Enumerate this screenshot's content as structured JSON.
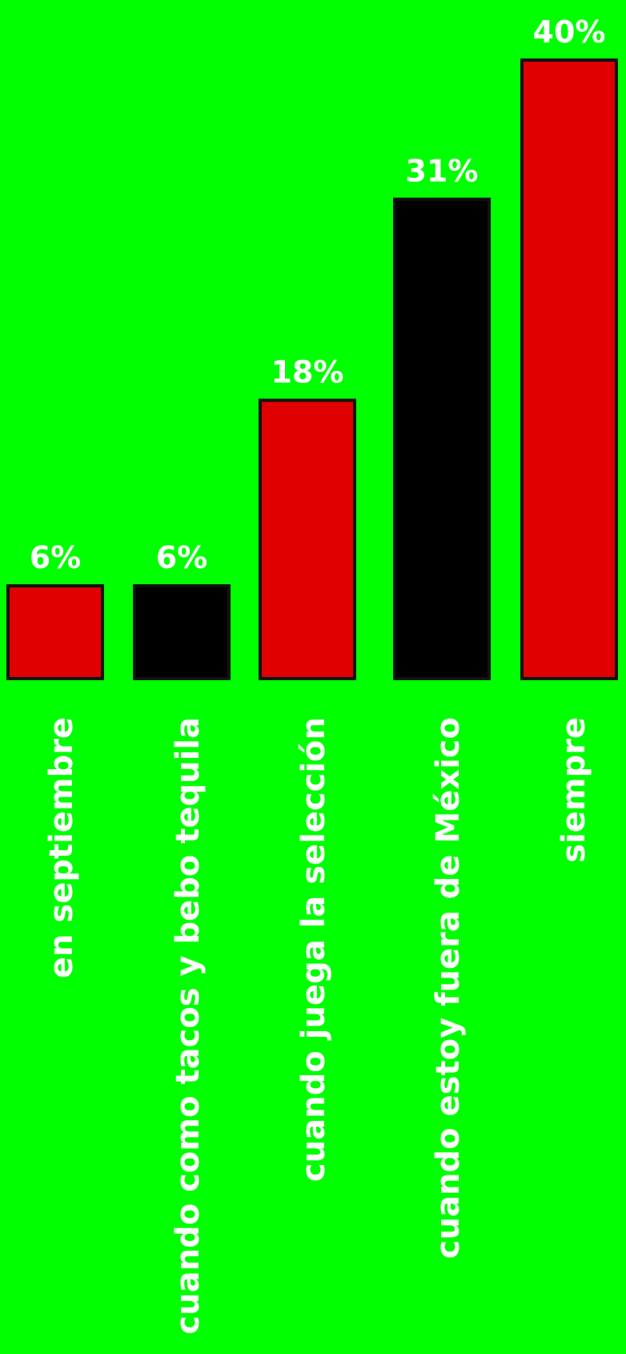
{
  "chart_data": {
    "type": "bar",
    "categories": [
      "en septiembre",
      "cuando como tacos y bebo tequila",
      "cuando juega la selección",
      "cuando estoy fuera de México",
      "siempre"
    ],
    "values": [
      6,
      6,
      18,
      31,
      40
    ],
    "value_labels": [
      "6%",
      "6%",
      "18%",
      "31%",
      "40%"
    ],
    "ylim": [
      0,
      40
    ],
    "grid": false,
    "legend": "none",
    "colors": {
      "background": "#00FF00",
      "bars": [
        "#E00000",
        "#000000",
        "#E00000",
        "#000000",
        "#E00000"
      ],
      "bar_border": "#111111",
      "text": "#FFFFFF"
    }
  }
}
